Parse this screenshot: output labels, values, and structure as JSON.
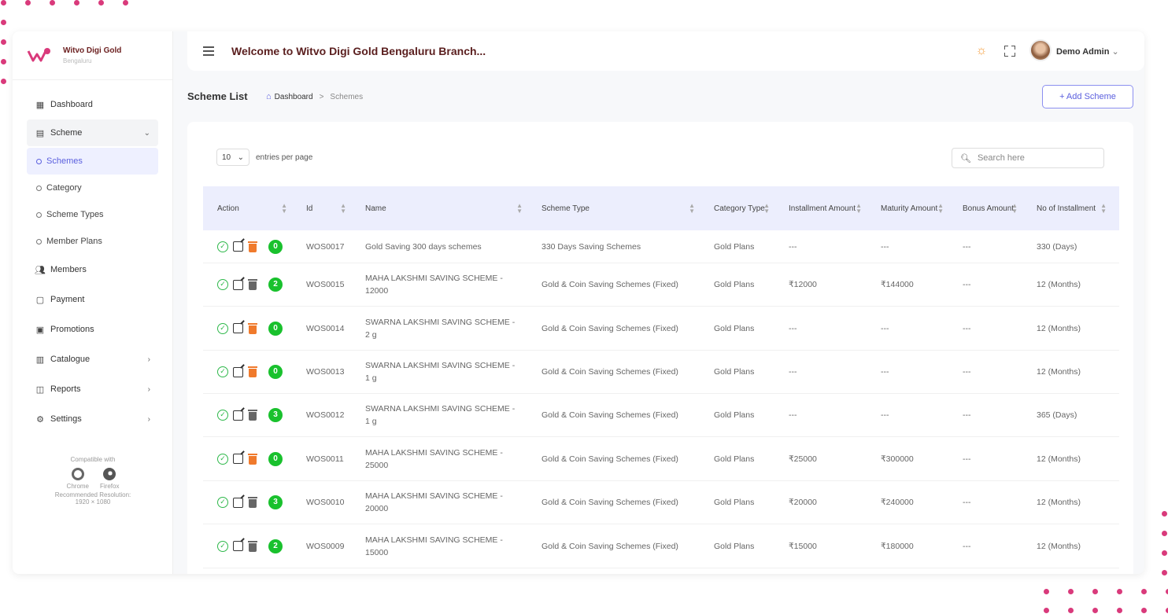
{
  "brand": {
    "name": "Witvo Digi Gold",
    "branch": "Bengaluru"
  },
  "header": {
    "welcome": "Welcome to Witvo Digi Gold Bengaluru Branch...",
    "user_name": "Demo Admin"
  },
  "sidebar": {
    "items": [
      {
        "label": "Dashboard",
        "icon": "dashboard-icon"
      },
      {
        "label": "Scheme",
        "icon": "calculator-icon"
      },
      {
        "label": "Members",
        "icon": "members-icon"
      },
      {
        "label": "Payment",
        "icon": "clipboard-icon"
      },
      {
        "label": "Promotions",
        "icon": "promotions-icon"
      },
      {
        "label": "Catalogue",
        "icon": "catalogue-icon"
      },
      {
        "label": "Reports",
        "icon": "reports-icon"
      },
      {
        "label": "Settings",
        "icon": "settings-icon"
      }
    ],
    "scheme_sub": [
      "Schemes",
      "Category",
      "Scheme Types",
      "Member Plans"
    ],
    "compat_title": "Compatible with",
    "browser1": "Chrome",
    "browser2": "Firefox",
    "resolution_label": "Recommended Resolution:",
    "resolution": "1920 × 1080"
  },
  "page": {
    "title": "Scheme List",
    "breadcrumb_home": "Dashboard",
    "breadcrumb_sep": ">",
    "breadcrumb_current": "Schemes",
    "add_button": "+ Add Scheme"
  },
  "table_controls": {
    "per_page": "10",
    "per_page_label": "entries per page",
    "search_placeholder": "Search here"
  },
  "table": {
    "headers": [
      "Action",
      "Id",
      "Name",
      "Scheme Type",
      "Category Type",
      "Installment Amount",
      "Maturity Amount",
      "Bonus Amount",
      "No of Installment"
    ],
    "rows": [
      {
        "count": "0",
        "id": "WOS0017",
        "name": "Gold Saving 300 days schemes",
        "type": "330 Days Saving Schemes",
        "category": "Gold Plans",
        "installment": "---",
        "maturity": "---",
        "bonus": "---",
        "num": "330 (Days)",
        "delete_color": "#f07a2c"
      },
      {
        "count": "2",
        "id": "WOS0015",
        "name": "MAHA LAKSHMI SAVING SCHEME - 12000",
        "type": "Gold & Coin Saving Schemes (Fixed)",
        "category": "Gold Plans",
        "installment": "₹12000",
        "maturity": "₹144000",
        "bonus": "---",
        "num": "12 (Months)",
        "delete_color": "#666666"
      },
      {
        "count": "0",
        "id": "WOS0014",
        "name": "SWARNA LAKSHMI SAVING SCHEME - 2 g",
        "type": "Gold & Coin Saving Schemes (Fixed)",
        "category": "Gold Plans",
        "installment": "---",
        "maturity": "---",
        "bonus": "---",
        "num": "12 (Months)",
        "delete_color": "#f07a2c"
      },
      {
        "count": "0",
        "id": "WOS0013",
        "name": "SWARNA LAKSHMI SAVING SCHEME - 1 g",
        "type": "Gold & Coin Saving Schemes (Fixed)",
        "category": "Gold Plans",
        "installment": "---",
        "maturity": "---",
        "bonus": "---",
        "num": "12 (Months)",
        "delete_color": "#f07a2c"
      },
      {
        "count": "3",
        "id": "WOS0012",
        "name": "SWARNA LAKSHMI SAVING SCHEME - 1 g",
        "type": "Gold & Coin Saving Schemes (Fixed)",
        "category": "Gold Plans",
        "installment": "---",
        "maturity": "---",
        "bonus": "---",
        "num": "365 (Days)",
        "delete_color": "#666666"
      },
      {
        "count": "0",
        "id": "WOS0011",
        "name": "MAHA LAKSHMI SAVING SCHEME - 25000",
        "type": "Gold & Coin Saving Schemes (Fixed)",
        "category": "Gold Plans",
        "installment": "₹25000",
        "maturity": "₹300000",
        "bonus": "---",
        "num": "12 (Months)",
        "delete_color": "#f07a2c"
      },
      {
        "count": "3",
        "id": "WOS0010",
        "name": "MAHA LAKSHMI SAVING SCHEME - 20000",
        "type": "Gold & Coin Saving Schemes (Fixed)",
        "category": "Gold Plans",
        "installment": "₹20000",
        "maturity": "₹240000",
        "bonus": "---",
        "num": "12 (Months)",
        "delete_color": "#666666"
      },
      {
        "count": "2",
        "id": "WOS0009",
        "name": "MAHA LAKSHMI SAVING SCHEME - 15000",
        "type": "Gold & Coin Saving Schemes (Fixed)",
        "category": "Gold Plans",
        "installment": "₹15000",
        "maturity": "₹180000",
        "bonus": "---",
        "num": "12 (Months)",
        "delete_color": "#666666"
      }
    ]
  },
  "colors": {
    "accent": "#5b5fde",
    "brand": "#5a1e1e",
    "dots": "#d93a7b",
    "count_badge": "#19c12d"
  }
}
